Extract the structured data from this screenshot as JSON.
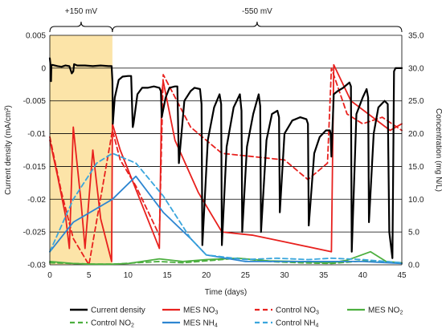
{
  "chart_data": {
    "type": "line",
    "xlabel": "Time (days)",
    "ylabel_left": "Current density (mA/cm²)",
    "ylabel_right": "Concentration (mg N/L)",
    "xlim": [
      0,
      45
    ],
    "ylim_left": [
      -0.03,
      0.005
    ],
    "ylim_right": [
      0,
      35
    ],
    "x_ticks": [
      0,
      5,
      10,
      15,
      20,
      25,
      30,
      35,
      40,
      45
    ],
    "y_left_ticks": [
      0.005,
      0,
      -0.005,
      -0.01,
      -0.015,
      -0.02,
      -0.025,
      -0.03
    ],
    "y_left_tick_labels": [
      "0.005",
      "0",
      "-0.005",
      "-0.01",
      "-0.015",
      "-0.02",
      "-0.025",
      "-0.03"
    ],
    "y_right_ticks": [
      35,
      30,
      25,
      20,
      15,
      10,
      5,
      0
    ],
    "y_right_tick_labels": [
      "35.0",
      "30.0",
      "25.0",
      "20.0",
      "15.0",
      "10.0",
      "5.0",
      "0.0"
    ],
    "grid": "horizontal",
    "legend_placement": "bottom",
    "shaded_region": {
      "x": [
        0,
        8
      ],
      "color": "#FCE4A8"
    },
    "annotations": [
      {
        "text": "+150 mV",
        "x_range": [
          0,
          8
        ]
      },
      {
        "text": "-550 mV",
        "x_range": [
          8,
          45
        ]
      }
    ],
    "colors": {
      "black": "#000000",
      "red": "#E8211E",
      "green": "#4CAF3F",
      "blue": "#2E86D1",
      "lightblue": "#3AA6DD"
    },
    "series": [
      {
        "name": "Current density",
        "axis": "left",
        "color": "#000000",
        "dash": "solid",
        "x": [
          0,
          0.1,
          0.15,
          0.2,
          0.3,
          1,
          1.5,
          2,
          2.5,
          2.8,
          3.0,
          3.1,
          3.5,
          4.5,
          5.5,
          6.5,
          7.5,
          7.9,
          8.0,
          8.05,
          8.3,
          8.8,
          9.3,
          10.0,
          10.4,
          10.6,
          10.7,
          11.2,
          11.8,
          12.5,
          13.3,
          14.0,
          14.2,
          14.3,
          14.8,
          15.3,
          16.0,
          16.3,
          16.5,
          17.2,
          18.0,
          18.5,
          19.2,
          19.4,
          19.5,
          20.2,
          21.0,
          21.7,
          21.9,
          22.0,
          22.6,
          23.5,
          24.3,
          24.5,
          24.6,
          25.2,
          26.0,
          26.7,
          26.9,
          27.0,
          27.7,
          28.4,
          29.1,
          29.3,
          29.4,
          30.0,
          31.0,
          32.0,
          32.8,
          33.0,
          33.1,
          33.8,
          34.5,
          35.3,
          35.8,
          35.9,
          36.0,
          36.3,
          36.8,
          37.5,
          38.3,
          38.5,
          38.6,
          39.2,
          40.0,
          40.5,
          40.7,
          40.8,
          41.4,
          42.0,
          42.8,
          43.2,
          43.4,
          43.8,
          44.0,
          44.2,
          44.5,
          45
        ],
        "values": [
          0.0015,
          0.0003,
          -0.002,
          0.0003,
          0.0005,
          0.0003,
          0.0002,
          0.0004,
          0.0003,
          -0.0008,
          -0.0005,
          0.0006,
          0.0004,
          0.0004,
          0.0003,
          0.0004,
          0.0003,
          0.0003,
          -0.002,
          -0.0085,
          -0.0045,
          -0.0018,
          -0.0013,
          -0.0012,
          -0.0012,
          -0.009,
          -0.0085,
          -0.004,
          -0.003,
          -0.003,
          -0.0028,
          -0.003,
          -0.0035,
          -0.0075,
          -0.0045,
          -0.003,
          -0.0028,
          -0.0028,
          -0.0145,
          -0.005,
          -0.0035,
          -0.003,
          -0.0032,
          -0.0055,
          -0.027,
          -0.011,
          -0.006,
          -0.004,
          -0.0055,
          -0.027,
          -0.012,
          -0.006,
          -0.004,
          -0.0065,
          -0.025,
          -0.012,
          -0.007,
          -0.004,
          -0.0058,
          -0.025,
          -0.011,
          -0.007,
          -0.0065,
          -0.0075,
          -0.022,
          -0.01,
          -0.008,
          -0.0075,
          -0.0078,
          -0.0085,
          -0.024,
          -0.013,
          -0.0105,
          -0.0095,
          -0.0095,
          -0.01,
          -0.0135,
          -0.004,
          -0.0035,
          -0.003,
          -0.0022,
          -0.0028,
          -0.028,
          -0.007,
          -0.0045,
          -0.0032,
          -0.0045,
          -0.0235,
          -0.01,
          -0.006,
          -0.005,
          -0.0055,
          -0.025,
          -0.029,
          -0.0005,
          0.0,
          0.0,
          0.0
        ]
      },
      {
        "name": "MES NO3",
        "axis": "right",
        "color": "#E8211E",
        "dash": "solid",
        "x": [
          0,
          1,
          2,
          2.5,
          3,
          4,
          4.5,
          5.5,
          6.5,
          7.9,
          8,
          9,
          11,
          14,
          14.3,
          14.5,
          16,
          19,
          22,
          26,
          30,
          36,
          36.3,
          38.5,
          43.5,
          45
        ],
        "values": [
          19,
          13.5,
          7.5,
          2.5,
          21,
          9.5,
          2.5,
          17.5,
          7,
          0.5,
          21.5,
          17.5,
          11.5,
          2.5,
          26,
          28,
          19,
          11,
          5,
          4.5,
          3.5,
          2,
          30.5,
          25,
          20.5,
          21.5
        ]
      },
      {
        "name": "Control NO3",
        "axis": "right",
        "color": "#E8211E",
        "dash": "dashed",
        "x": [
          0,
          1.5,
          3,
          5,
          8,
          9,
          11,
          14,
          14.5,
          18,
          22,
          30,
          33,
          35.5,
          36,
          38,
          40,
          42.5,
          45
        ],
        "values": [
          19.5,
          11,
          4,
          0,
          20.5,
          16,
          12,
          4.5,
          29,
          21,
          17,
          16,
          13,
          15.5,
          30,
          23,
          21.5,
          22.5,
          20.5
        ]
      },
      {
        "name": "MES NO2",
        "axis": "right",
        "color": "#4CAF3F",
        "dash": "solid",
        "x": [
          0,
          3,
          5,
          8,
          10,
          14,
          17,
          20,
          24,
          28,
          32,
          36,
          38,
          41,
          43,
          45
        ],
        "values": [
          0.5,
          0.2,
          0.1,
          0.1,
          0.2,
          0.9,
          0.5,
          0.8,
          1.0,
          0.6,
          0.5,
          0.3,
          0.7,
          2.0,
          0.5,
          0.3
        ]
      },
      {
        "name": "Control NO2",
        "axis": "right",
        "color": "#4CAF3F",
        "dash": "dashed",
        "x": [
          0,
          3,
          6,
          8,
          11,
          14,
          17,
          20,
          24,
          28,
          32,
          36,
          40,
          45
        ],
        "values": [
          0.3,
          0.2,
          0.1,
          0.1,
          0.3,
          0.5,
          0.3,
          0.6,
          1.0,
          0.5,
          0.3,
          0.2,
          0.6,
          0.3
        ]
      },
      {
        "name": "MES NH4",
        "axis": "right",
        "color": "#2E86D1",
        "dash": "solid",
        "x": [
          0,
          3,
          8,
          11,
          14.5,
          18,
          20,
          25,
          29,
          33,
          36,
          40,
          45
        ],
        "values": [
          2,
          6.5,
          10,
          13.5,
          8,
          4,
          1.5,
          0.5,
          0.5,
          0.5,
          0.5,
          0.5,
          0.2
        ]
      },
      {
        "name": "Control NH4",
        "axis": "right",
        "color": "#3AA6DD",
        "dash": "dashed",
        "x": [
          0,
          3,
          6,
          8,
          11,
          14.5,
          18,
          20,
          25,
          29,
          33,
          36,
          40,
          45
        ],
        "values": [
          2,
          10,
          15.5,
          17,
          15.5,
          10.5,
          4,
          1.5,
          0.8,
          1.0,
          0.8,
          1.0,
          0.8,
          0.3
        ]
      }
    ],
    "legend": [
      {
        "series": "Current density",
        "text": "Current density"
      },
      {
        "series": "MES NO3",
        "text": "MES NO",
        "sub": "3"
      },
      {
        "series": "Control NO3",
        "text": "Control NO",
        "sub": "3"
      },
      {
        "series": "MES NO2",
        "text": "MES NO",
        "sub": "2"
      },
      {
        "series": "Control NO2",
        "text": "Control NO",
        "sub": "2"
      },
      {
        "series": "MES NH4",
        "text": "MES NH",
        "sub": "4"
      },
      {
        "series": "Control NH4",
        "text": "Control NH",
        "sub": "4"
      }
    ]
  }
}
